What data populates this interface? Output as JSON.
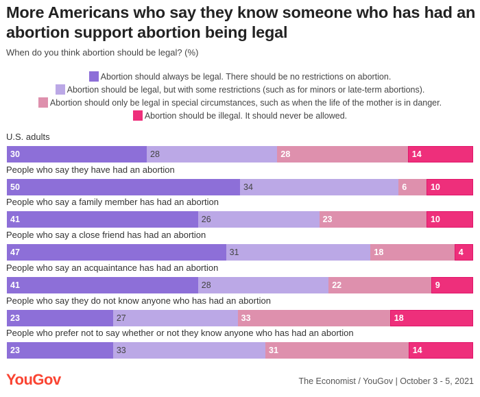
{
  "header": {
    "title": "More Americans who say they know someone who has had an abortion support abortion being legal",
    "subtitle": "When do you think abortion should be legal? (%)"
  },
  "footer": {
    "logo": "YouGov",
    "source": "The Economist / YouGov | October 3 - 5, 2021"
  },
  "chart_data": {
    "type": "bar",
    "orientation": "horizontal-stacked-100",
    "title": "More Americans who say they know someone who has had an abortion support abortion being legal",
    "subtitle": "When do you think abortion should be legal? (%)",
    "legend_position": "top-center",
    "series": [
      {
        "name": "Abortion should always be legal. There should be no restrictions on abortion.",
        "color": "#8d6fd8",
        "values": [
          30,
          50,
          41,
          47,
          41,
          23,
          23
        ]
      },
      {
        "name": "Abortion should be legal, but with some restrictions (such as for minors or late-term abortions).",
        "color": "#bba8e6",
        "values": [
          28,
          34,
          26,
          31,
          28,
          27,
          33
        ]
      },
      {
        "name": "Abortion should only be legal in special circumstances, such as when the life of the mother is in danger.",
        "color": "#de90ad",
        "values": [
          28,
          6,
          23,
          18,
          22,
          33,
          31
        ]
      },
      {
        "name": "Abortion should be illegal. It should never be allowed.",
        "color": "#ee2f7b",
        "values": [
          14,
          10,
          10,
          4,
          9,
          18,
          14
        ]
      }
    ],
    "categories": [
      "U.S. adults",
      "People who say they have had an abortion",
      "People who say a family member has had an abortion",
      "People who say a close friend has had an abortion",
      "People who say an acquaintance has had an abortion",
      "People who say they do not know anyone who has had an abortion",
      "People who prefer not to say whether or not they know anyone who has had an abortion"
    ]
  }
}
